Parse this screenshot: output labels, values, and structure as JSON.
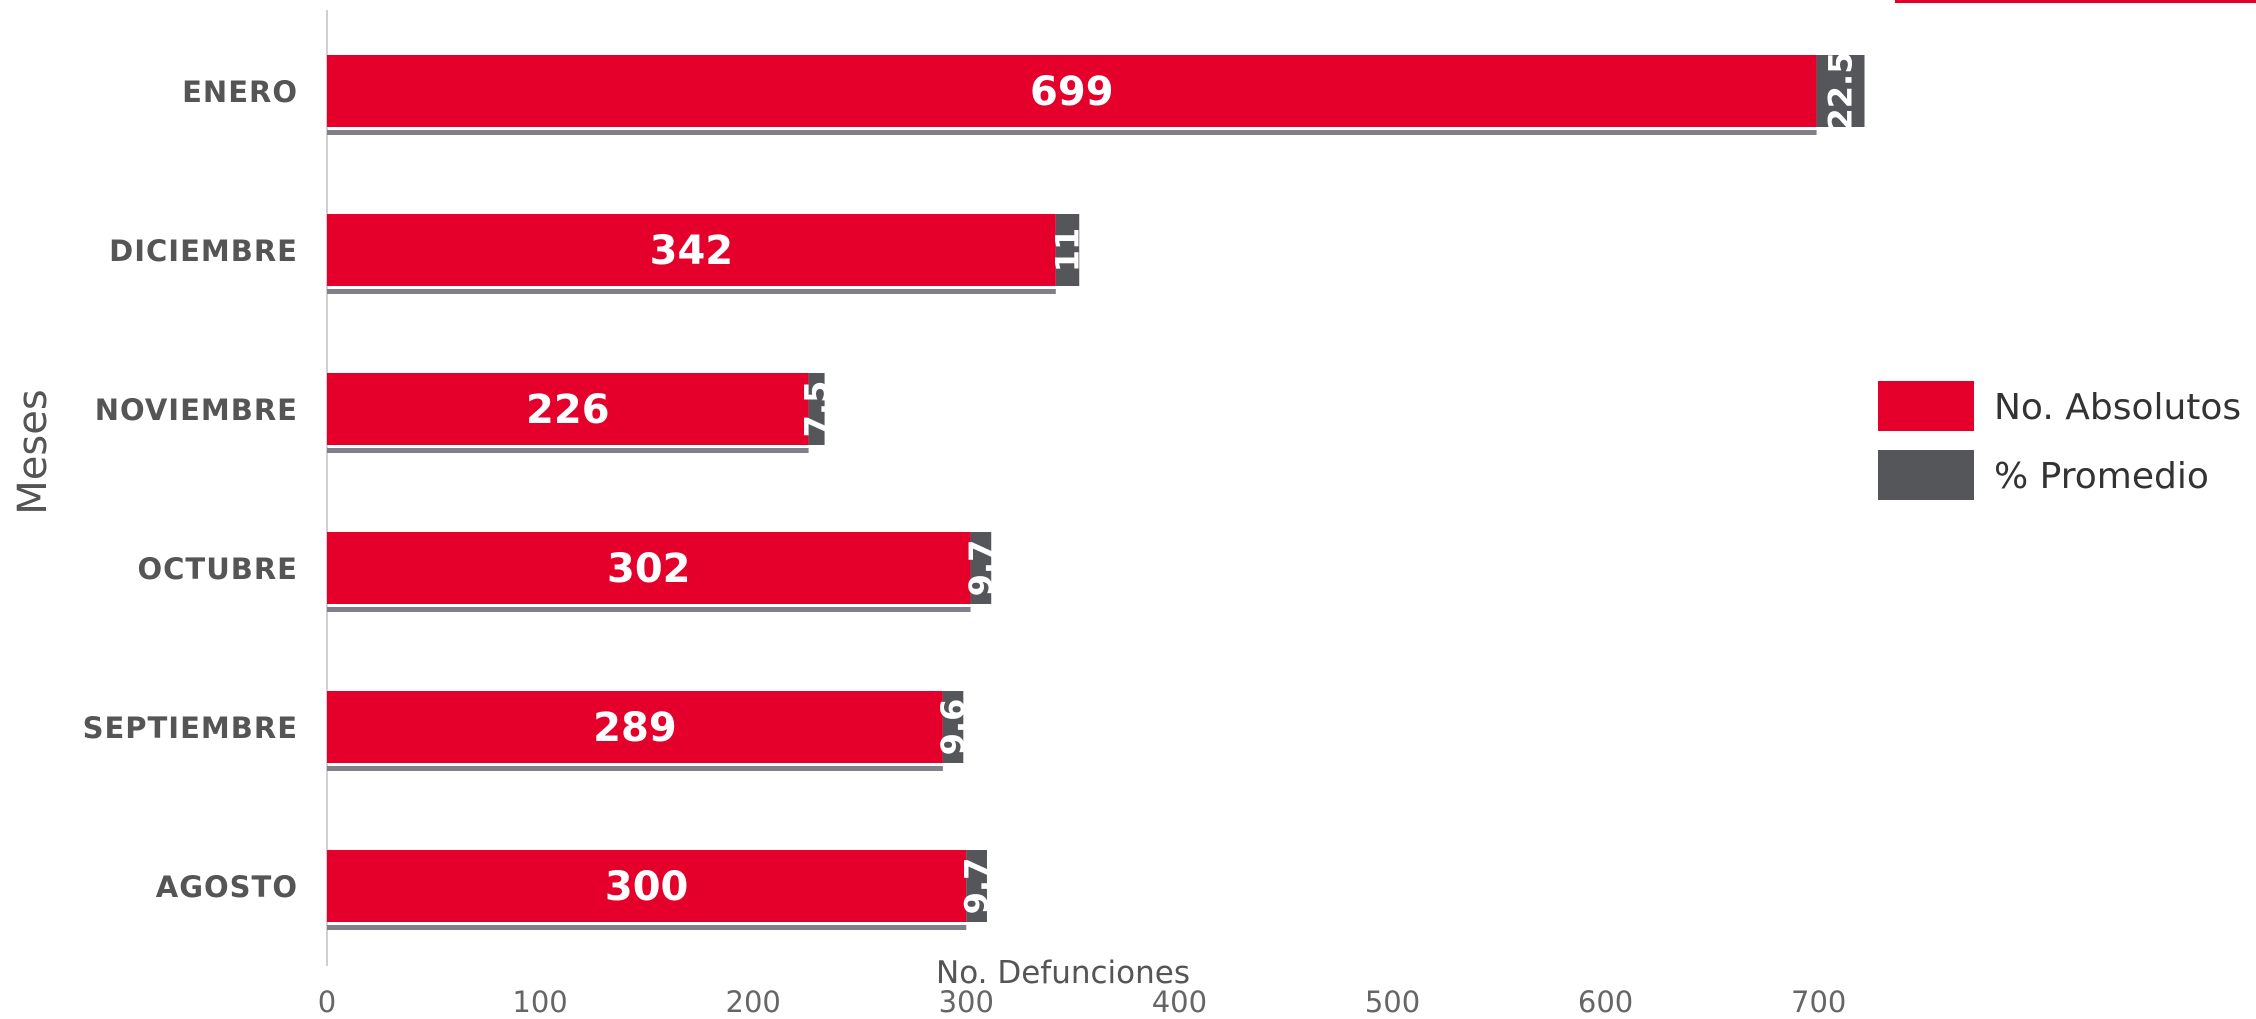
{
  "chart_data": {
    "type": "bar",
    "orientation": "horizontal",
    "stacked": true,
    "categories": [
      "ENERO",
      "DICIEMBRE",
      "NOVIEMBRE",
      "OCTUBRE",
      "SEPTIEMBRE",
      "AGOSTO"
    ],
    "series": [
      {
        "name": "No. Absolutos",
        "values": [
          699,
          342,
          226,
          302,
          289,
          300
        ],
        "labels": [
          "699",
          "342",
          "226",
          "302",
          "289",
          "300"
        ],
        "color": "#e4002b"
      },
      {
        "name": "% Promedio",
        "values": [
          22.5,
          11,
          7.5,
          9.7,
          9.6,
          9.7
        ],
        "labels": [
          "22.5",
          "11",
          "7.5",
          "9.7",
          "9.6",
          "9.7"
        ],
        "color": "#54565a"
      }
    ],
    "underline_color": "#7f8088",
    "xlabel": "No. Defunciones",
    "ylabel": "Meses",
    "xlim": [
      0,
      700
    ],
    "xticks": [
      "0",
      "100",
      "200",
      "300",
      "400",
      "500",
      "600",
      "700"
    ],
    "grid": false,
    "legend_position": "right",
    "accent_color": "#e4002b"
  }
}
